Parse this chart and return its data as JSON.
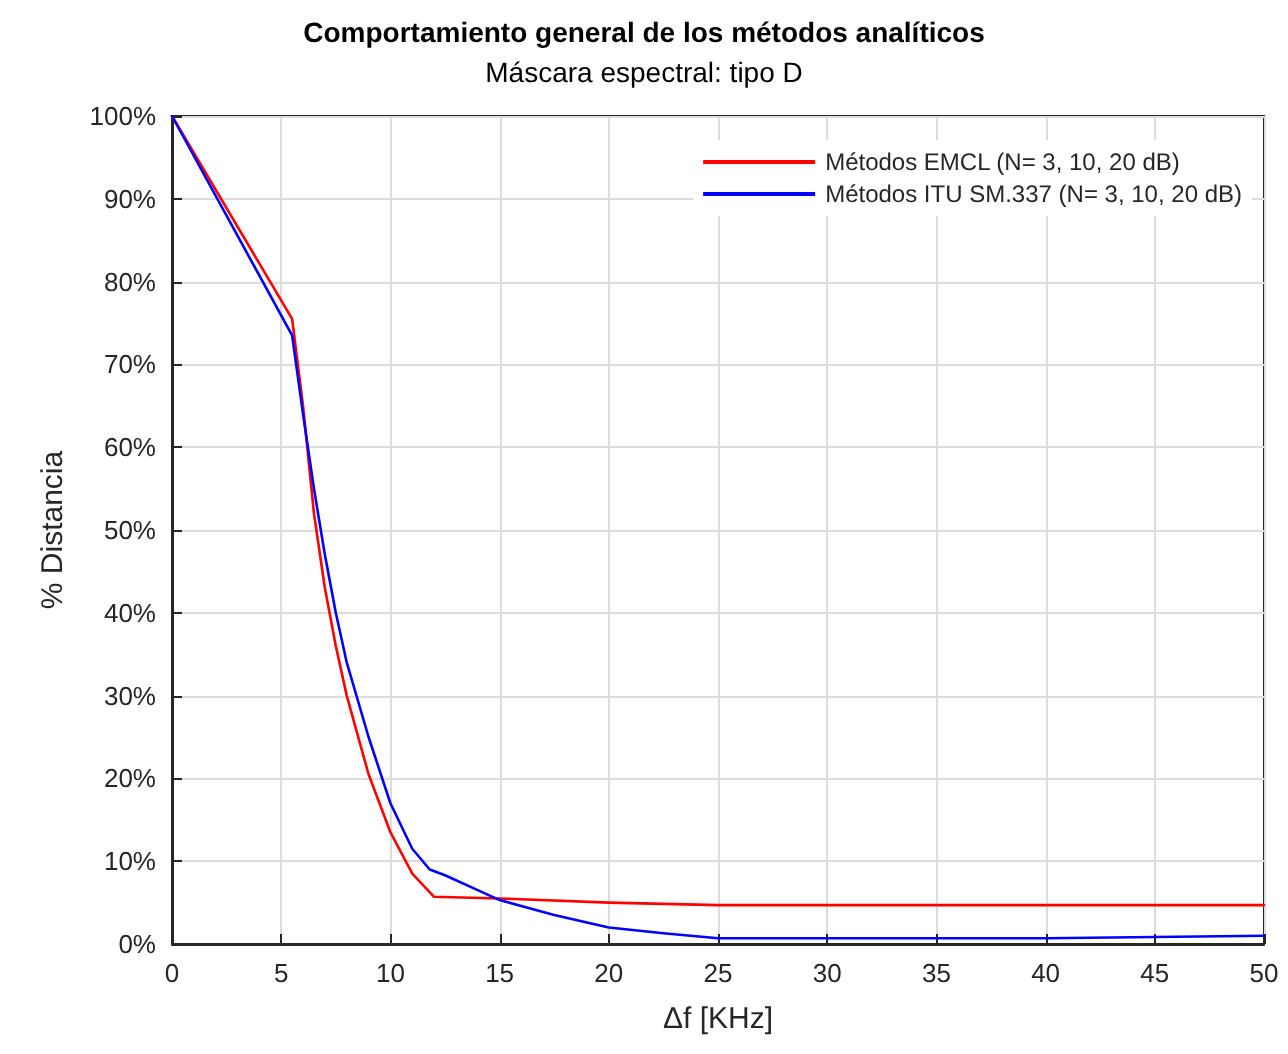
{
  "chart_data": {
    "type": "line",
    "title": "Comportamiento general de los métodos analíticos",
    "subtitle": "Máscara espectral: tipo D",
    "xlabel": "Δf [KHz]",
    "ylabel": "% Distancia",
    "xlim": [
      0,
      50
    ],
    "xticks": [
      0,
      5,
      10,
      15,
      20,
      25,
      30,
      35,
      40,
      45,
      50
    ],
    "ylim": [
      0,
      100
    ],
    "yticks": [
      {
        "value": 0,
        "label": "0%"
      },
      {
        "value": 10,
        "label": "10%"
      },
      {
        "value": 20,
        "label": "20%"
      },
      {
        "value": 30,
        "label": "30%"
      },
      {
        "value": 40,
        "label": "40%"
      },
      {
        "value": 50,
        "label": "50%"
      },
      {
        "value": 60,
        "label": "60%"
      },
      {
        "value": 70,
        "label": "70%"
      },
      {
        "value": 80,
        "label": "80%"
      },
      {
        "value": 90,
        "label": "90%"
      },
      {
        "value": 100,
        "label": "100%"
      }
    ],
    "grid": true,
    "legend": "top right",
    "marker": "none",
    "line_style": "solid",
    "series": [
      {
        "name": "Métodos EMCL (N= 3, 10, 20 dB)",
        "color": "#ff0000",
        "x": [
          0,
          5.5,
          6,
          6.5,
          7,
          7.5,
          8,
          9,
          10,
          11,
          12,
          15,
          20,
          25,
          50
        ],
        "values": [
          100,
          75.5,
          65,
          52,
          43,
          36,
          30,
          20.5,
          13.5,
          8.5,
          5.7,
          5.5,
          5,
          4.7,
          4.7
        ]
      },
      {
        "name": "Métodos ITU SM.337 (N= 3, 10, 20 dB)",
        "color": "#0000ff",
        "x": [
          0,
          5.5,
          6,
          6.5,
          7,
          7.5,
          8,
          9,
          10,
          11,
          11.8,
          12.5,
          14,
          15,
          17.5,
          20,
          22.5,
          25,
          40,
          50
        ],
        "values": [
          100,
          73.5,
          64,
          55,
          47,
          40,
          34,
          25,
          17,
          11.5,
          9,
          8.3,
          6.5,
          5.3,
          3.5,
          2,
          1.3,
          0.7,
          0.7,
          1
        ]
      }
    ]
  }
}
